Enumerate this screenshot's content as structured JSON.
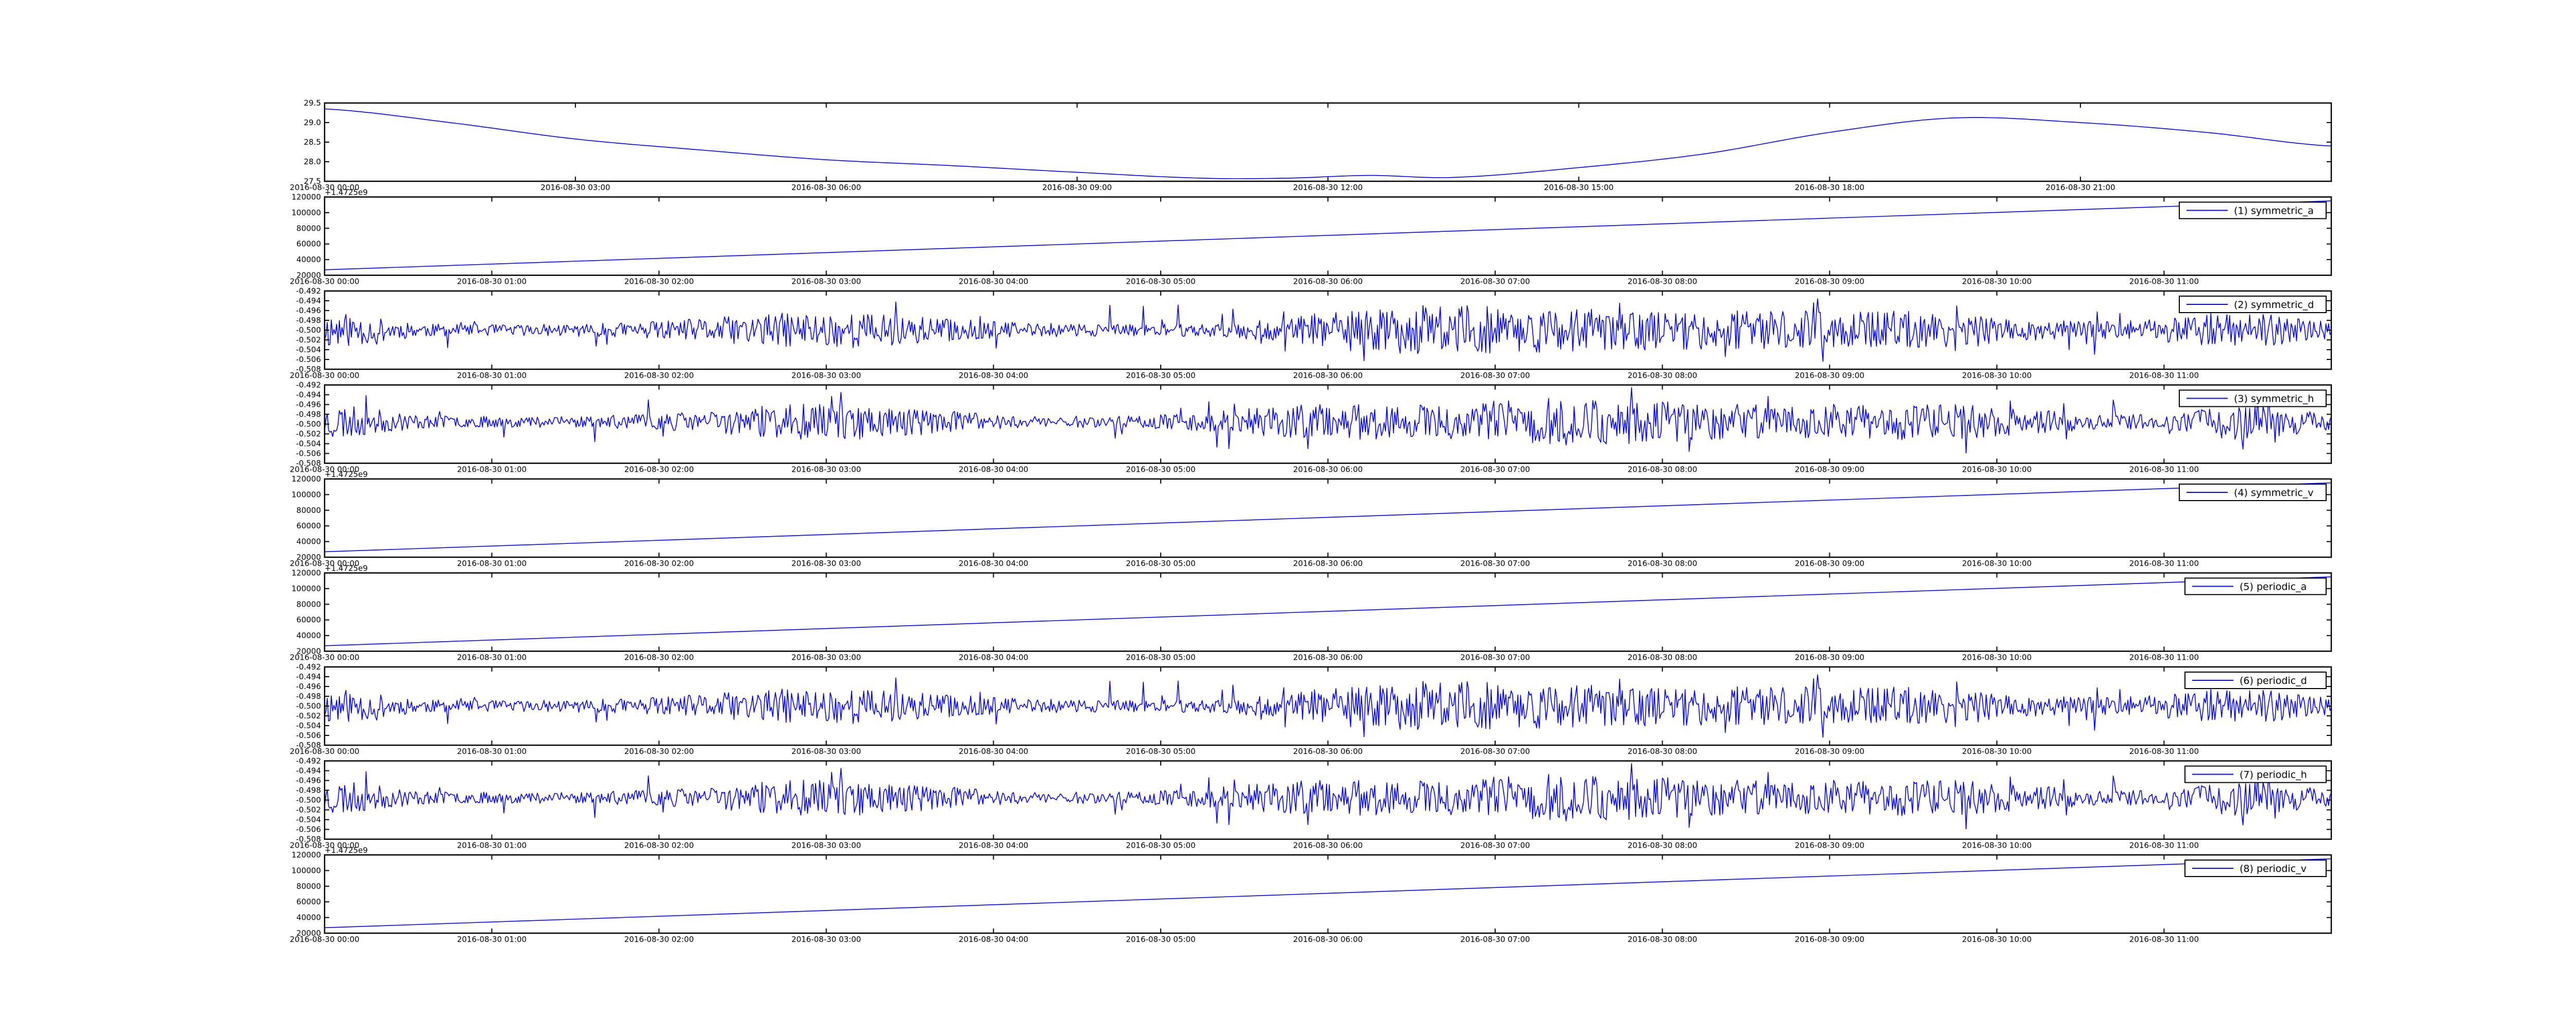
{
  "colors": {
    "line": "#0000ff",
    "axes": "#000000",
    "background": "#ffffff"
  },
  "chart_data": [
    {
      "type": "line",
      "legend": "",
      "grid": false,
      "ylim": [
        27.5,
        29.5
      ],
      "yticks": [
        "27.5",
        "28.0",
        "28.5",
        "29.0",
        "29.5"
      ],
      "xticks": [
        "2016-08-30 00:00",
        "2016-08-30 03:00",
        "2016-08-30 06:00",
        "2016-08-30 09:00",
        "2016-08-30 12:00",
        "2016-08-30 15:00",
        "2016-08-30 18:00",
        "2016-08-30 21:00"
      ],
      "xlim_hours": [
        0,
        24
      ],
      "pattern": "smooth",
      "x": [
        0,
        1.5,
        3,
        4.5,
        6,
        7.5,
        9,
        10.5,
        11.5,
        12.5,
        13.5,
        15,
        16.5,
        18,
        19.5,
        21,
        22.5,
        24
      ],
      "y": [
        29.35,
        29.0,
        28.58,
        28.3,
        28.05,
        27.9,
        27.73,
        27.58,
        27.58,
        27.65,
        27.6,
        27.85,
        28.2,
        28.75,
        29.12,
        29.0,
        28.75,
        28.4
      ]
    },
    {
      "type": "line",
      "legend": "(1) symmetric_a",
      "legend_loc": "upper right",
      "grid": false,
      "ylim": [
        20000,
        120000
      ],
      "offset": "+1.4725e9",
      "yticks": [
        "20000",
        "40000",
        "60000",
        "80000",
        "100000",
        "120000"
      ],
      "xticks": [
        "2016-08-30 00:00",
        "2016-08-30 01:00",
        "2016-08-30 02:00",
        "2016-08-30 03:00",
        "2016-08-30 04:00",
        "2016-08-30 05:00",
        "2016-08-30 06:00",
        "2016-08-30 07:00",
        "2016-08-30 08:00",
        "2016-08-30 09:00",
        "2016-08-30 10:00",
        "2016-08-30 11:00"
      ],
      "xlim_hours": [
        0,
        12
      ],
      "pattern": "linear",
      "x": [
        0,
        12
      ],
      "y": [
        27000,
        115000
      ]
    },
    {
      "type": "line",
      "legend": "(2) symmetric_d",
      "legend_loc": "upper right",
      "grid": false,
      "ylim": [
        -0.508,
        -0.492
      ],
      "yticks": [
        "-0.508",
        "-0.506",
        "-0.504",
        "-0.502",
        "-0.500",
        "-0.498",
        "-0.496",
        "-0.494",
        "-0.492"
      ],
      "xticks": [
        "2016-08-30 00:00",
        "2016-08-30 01:00",
        "2016-08-30 02:00",
        "2016-08-30 03:00",
        "2016-08-30 04:00",
        "2016-08-30 05:00",
        "2016-08-30 06:00",
        "2016-08-30 07:00",
        "2016-08-30 08:00",
        "2016-08-30 09:00",
        "2016-08-30 10:00",
        "2016-08-30 11:00"
      ],
      "xlim_hours": [
        0,
        12
      ],
      "pattern": "noise",
      "center": -0.5,
      "seed": 11,
      "bursts": [
        [
          0,
          0.4
        ],
        [
          3.0,
          0.9
        ],
        [
          6.3,
          0.7
        ],
        [
          7.0,
          0.6
        ],
        [
          8.0,
          0.9
        ],
        [
          9.4,
          0.9
        ],
        [
          11.4,
          0.5
        ]
      ]
    },
    {
      "type": "line",
      "legend": "(3) symmetric_h",
      "legend_loc": "upper right",
      "grid": false,
      "ylim": [
        -0.508,
        -0.492
      ],
      "yticks": [
        "-0.508",
        "-0.506",
        "-0.504",
        "-0.502",
        "-0.500",
        "-0.498",
        "-0.496",
        "-0.494",
        "-0.492"
      ],
      "xticks": [
        "2016-08-30 00:00",
        "2016-08-30 01:00",
        "2016-08-30 02:00",
        "2016-08-30 03:00",
        "2016-08-30 04:00",
        "2016-08-30 05:00",
        "2016-08-30 06:00",
        "2016-08-30 07:00",
        "2016-08-30 08:00",
        "2016-08-30 09:00",
        "2016-08-30 10:00",
        "2016-08-30 11:00"
      ],
      "xlim_hours": [
        0,
        12
      ],
      "pattern": "noise",
      "center": -0.4995,
      "seed": 23,
      "bursts": [
        [
          0,
          0.4
        ],
        [
          3.0,
          0.8
        ],
        [
          6.0,
          0.7
        ],
        [
          7.2,
          0.6
        ],
        [
          8.0,
          0.8
        ],
        [
          9.5,
          0.9
        ],
        [
          11.5,
          0.4
        ]
      ]
    },
    {
      "type": "line",
      "legend": "(4) symmetric_v",
      "legend_loc": "upper right",
      "grid": false,
      "ylim": [
        20000,
        120000
      ],
      "offset": "+1.4725e9",
      "yticks": [
        "20000",
        "40000",
        "60000",
        "80000",
        "100000",
        "120000"
      ],
      "xticks": [
        "2016-08-30 00:00",
        "2016-08-30 01:00",
        "2016-08-30 02:00",
        "2016-08-30 03:00",
        "2016-08-30 04:00",
        "2016-08-30 05:00",
        "2016-08-30 06:00",
        "2016-08-30 07:00",
        "2016-08-30 08:00",
        "2016-08-30 09:00",
        "2016-08-30 10:00",
        "2016-08-30 11:00"
      ],
      "xlim_hours": [
        0,
        12
      ],
      "pattern": "linear",
      "x": [
        0,
        12
      ],
      "y": [
        27000,
        115000
      ]
    },
    {
      "type": "line",
      "legend": "(5) periodic_a",
      "legend_loc": "upper right",
      "grid": false,
      "ylim": [
        20000,
        120000
      ],
      "offset": "+1.4725e9",
      "yticks": [
        "20000",
        "40000",
        "60000",
        "80000",
        "100000",
        "120000"
      ],
      "xticks": [
        "2016-08-30 00:00",
        "2016-08-30 01:00",
        "2016-08-30 02:00",
        "2016-08-30 03:00",
        "2016-08-30 04:00",
        "2016-08-30 05:00",
        "2016-08-30 06:00",
        "2016-08-30 07:00",
        "2016-08-30 08:00",
        "2016-08-30 09:00",
        "2016-08-30 10:00",
        "2016-08-30 11:00"
      ],
      "xlim_hours": [
        0,
        12
      ],
      "pattern": "linear",
      "x": [
        0,
        12
      ],
      "y": [
        27000,
        115000
      ]
    },
    {
      "type": "line",
      "legend": "(6) periodic_d",
      "legend_loc": "upper right",
      "grid": false,
      "ylim": [
        -0.508,
        -0.492
      ],
      "yticks": [
        "-0.508",
        "-0.506",
        "-0.504",
        "-0.502",
        "-0.500",
        "-0.498",
        "-0.496",
        "-0.494",
        "-0.492"
      ],
      "xticks": [
        "2016-08-30 00:00",
        "2016-08-30 01:00",
        "2016-08-30 02:00",
        "2016-08-30 03:00",
        "2016-08-30 04:00",
        "2016-08-30 05:00",
        "2016-08-30 06:00",
        "2016-08-30 07:00",
        "2016-08-30 08:00",
        "2016-08-30 09:00",
        "2016-08-30 10:00",
        "2016-08-30 11:00"
      ],
      "xlim_hours": [
        0,
        12
      ],
      "pattern": "noise",
      "center": -0.5,
      "seed": 11,
      "bursts": [
        [
          0,
          0.4
        ],
        [
          3.0,
          0.9
        ],
        [
          6.3,
          0.7
        ],
        [
          7.0,
          0.6
        ],
        [
          8.0,
          0.9
        ],
        [
          9.4,
          0.9
        ],
        [
          11.4,
          0.5
        ]
      ]
    },
    {
      "type": "line",
      "legend": "(7) periodic_h",
      "legend_loc": "upper right",
      "grid": false,
      "ylim": [
        -0.508,
        -0.492
      ],
      "yticks": [
        "-0.508",
        "-0.506",
        "-0.504",
        "-0.502",
        "-0.500",
        "-0.498",
        "-0.496",
        "-0.494",
        "-0.492"
      ],
      "xticks": [
        "2016-08-30 00:00",
        "2016-08-30 01:00",
        "2016-08-30 02:00",
        "2016-08-30 03:00",
        "2016-08-30 04:00",
        "2016-08-30 05:00",
        "2016-08-30 06:00",
        "2016-08-30 07:00",
        "2016-08-30 08:00",
        "2016-08-30 09:00",
        "2016-08-30 10:00",
        "2016-08-30 11:00"
      ],
      "xlim_hours": [
        0,
        12
      ],
      "pattern": "noise",
      "center": -0.4995,
      "seed": 23,
      "bursts": [
        [
          0,
          0.4
        ],
        [
          3.0,
          0.8
        ],
        [
          6.0,
          0.7
        ],
        [
          7.2,
          0.6
        ],
        [
          8.0,
          0.8
        ],
        [
          9.5,
          0.9
        ],
        [
          11.5,
          0.4
        ]
      ]
    },
    {
      "type": "line",
      "legend": "(8) periodic_v",
      "legend_loc": "upper right",
      "grid": false,
      "ylim": [
        20000,
        120000
      ],
      "offset": "+1.4725e9",
      "yticks": [
        "20000",
        "40000",
        "60000",
        "80000",
        "100000",
        "120000"
      ],
      "xticks": [
        "2016-08-30 00:00",
        "2016-08-30 01:00",
        "2016-08-30 02:00",
        "2016-08-30 03:00",
        "2016-08-30 04:00",
        "2016-08-30 05:00",
        "2016-08-30 06:00",
        "2016-08-30 07:00",
        "2016-08-30 08:00",
        "2016-08-30 09:00",
        "2016-08-30 10:00",
        "2016-08-30 11:00"
      ],
      "xlim_hours": [
        0,
        12
      ],
      "pattern": "linear",
      "x": [
        0,
        12
      ],
      "y": [
        27000,
        115000
      ]
    }
  ]
}
